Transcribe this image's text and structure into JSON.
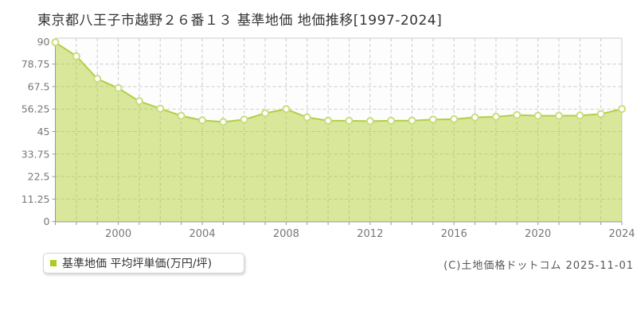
{
  "title": "東京都八王子市越野２６番１３ 基準地価 地価推移[1997-2024]",
  "legend": {
    "marker_color": "#aacc22",
    "label": "基準地価 平均坪単価(万円/坪)"
  },
  "footer": {
    "copyright": "(C)土地価格ドットコム 2025-11-01"
  },
  "chart_data": {
    "type": "area",
    "title": "東京都八王子市越野２６番１３ 基準地価 地価推移[1997-2024]",
    "x": [
      1997,
      1998,
      1999,
      2000,
      2001,
      2002,
      2003,
      2004,
      2005,
      2006,
      2007,
      2008,
      2009,
      2010,
      2011,
      2012,
      2013,
      2014,
      2015,
      2016,
      2017,
      2018,
      2019,
      2020,
      2021,
      2022,
      2023,
      2024
    ],
    "series": [
      {
        "name": "基準地価 平均坪単価(万円/坪)",
        "values": [
          89.6,
          82.7,
          71.4,
          66.7,
          60.2,
          56.5,
          52.9,
          50.6,
          49.8,
          51.0,
          54.2,
          56.2,
          52.1,
          50.5,
          50.4,
          50.2,
          50.4,
          50.5,
          51.0,
          51.2,
          52.1,
          52.4,
          53.3,
          52.9,
          52.9,
          53.0,
          53.8,
          56.3
        ]
      }
    ],
    "xlabel": "",
    "ylabel": "",
    "ylim": [
      0,
      90
    ],
    "yticks": [
      0,
      11.25,
      22.5,
      33.75,
      45,
      56.25,
      67.5,
      78.75,
      90
    ],
    "xtick_labels": [
      2000,
      2004,
      2008,
      2012,
      2016,
      2020,
      2024
    ],
    "grid": true,
    "legend_position": "bottom-left",
    "colors": {
      "line": "#b2cf45",
      "fill": "#aacc22",
      "point_fill": "#ffffff",
      "point_stroke": "#c9dd7d",
      "grid": "#cccccc",
      "axis": "#999999",
      "tick_text": "#777777",
      "plot_bg": "#fdfdfd"
    }
  }
}
